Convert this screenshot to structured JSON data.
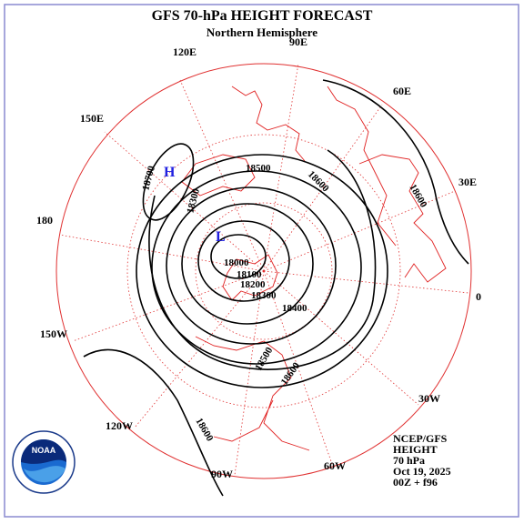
{
  "header": {
    "title": "GFS 70-hPa HEIGHT FORECAST",
    "subtitle": "Northern Hemisphere"
  },
  "longitudes": [
    "90E",
    "120E",
    "60E",
    "150E",
    "30E",
    "180",
    "0",
    "150W",
    "30W",
    "120W",
    "60W",
    "90W"
  ],
  "contour_labels": [
    18700,
    18500,
    18600,
    18600,
    18300,
    18000,
    18100,
    18200,
    18300,
    18400,
    18500,
    18600,
    18600
  ],
  "centers": {
    "high": "H",
    "low": "L"
  },
  "logo": "NOAA",
  "info": [
    "NCEP/GFS",
    "HEIGHT",
    "70 hPa",
    "Oct 19, 2025",
    "00Z + f96"
  ]
}
